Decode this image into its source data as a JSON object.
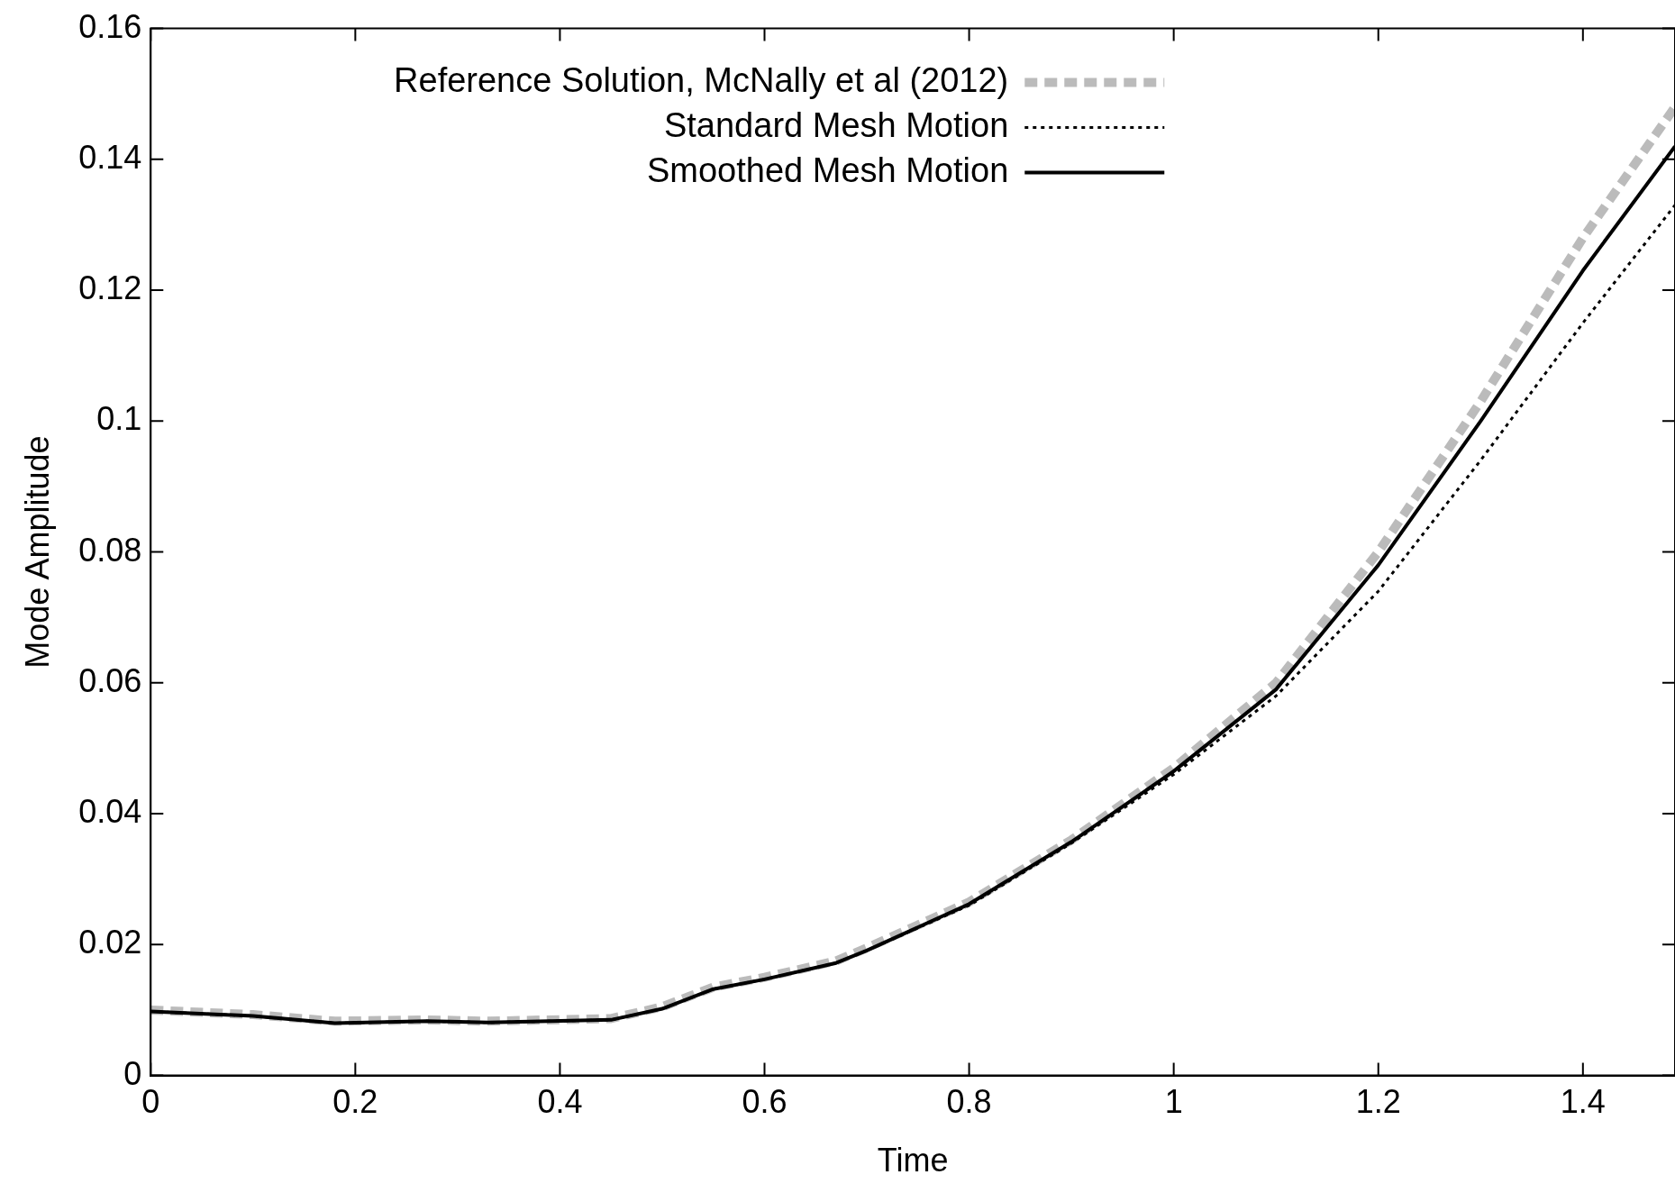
{
  "chart_data": {
    "type": "line",
    "xlabel": "Time",
    "ylabel": "Mode Amplitude",
    "xlim": [
      0,
      1.49
    ],
    "xticks": [
      0,
      0.2,
      0.4,
      0.6,
      0.8,
      1,
      1.2,
      1.4
    ],
    "ylim": [
      0,
      0.16
    ],
    "yticks": [
      0,
      0.02,
      0.04,
      0.06,
      0.08,
      0.1,
      0.12,
      0.14,
      0.16
    ],
    "grid": false,
    "legend": "top",
    "marker": "none",
    "series": [
      {
        "name": "Reference Solution, McNally et al (2012)",
        "color": "#bbbbbb",
        "line_style": "dashed",
        "x": [
          0,
          0.1,
          0.18,
          0.27,
          0.33,
          0.45,
          0.5,
          0.55,
          0.6,
          0.67,
          0.7,
          0.8,
          0.9,
          1.0,
          1.1,
          1.2,
          1.3,
          1.4,
          1.49
        ],
        "values": [
          0.01,
          0.0093,
          0.0083,
          0.0085,
          0.0083,
          0.0087,
          0.0105,
          0.0135,
          0.015,
          0.0175,
          0.0195,
          0.0265,
          0.036,
          0.047,
          0.06,
          0.08,
          0.103,
          0.128,
          0.148
        ]
      },
      {
        "name": "Standard Mesh Motion",
        "color": "#000000",
        "line_style": "dotted",
        "x": [
          0,
          0.1,
          0.18,
          0.27,
          0.33,
          0.45,
          0.5,
          0.55,
          0.6,
          0.67,
          0.7,
          0.8,
          0.9,
          1.0,
          1.1,
          1.2,
          1.3,
          1.4,
          1.49
        ],
        "values": [
          0.0098,
          0.0091,
          0.008,
          0.0083,
          0.0081,
          0.0085,
          0.0102,
          0.0132,
          0.0147,
          0.0172,
          0.0191,
          0.026,
          0.0355,
          0.046,
          0.058,
          0.074,
          0.094,
          0.115,
          0.133
        ]
      },
      {
        "name": "Smoothed Mesh Motion",
        "color": "#000000",
        "line_style": "solid",
        "x": [
          0,
          0.1,
          0.18,
          0.27,
          0.33,
          0.45,
          0.5,
          0.55,
          0.6,
          0.67,
          0.7,
          0.8,
          0.9,
          1.0,
          1.1,
          1.2,
          1.3,
          1.4,
          1.49
        ],
        "values": [
          0.0098,
          0.0091,
          0.008,
          0.0083,
          0.0081,
          0.0085,
          0.0102,
          0.0132,
          0.0147,
          0.0172,
          0.0191,
          0.0262,
          0.0357,
          0.0465,
          0.059,
          0.078,
          0.1,
          0.123,
          0.142
        ]
      }
    ]
  }
}
